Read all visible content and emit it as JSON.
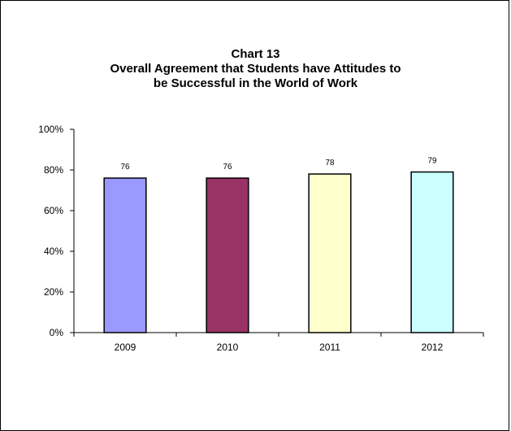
{
  "chart_data": {
    "type": "bar",
    "title_lines": [
      "Chart 13",
      "Overall Agreement that Students have Attitudes to",
      "be Successful in the World of Work"
    ],
    "xlabel": "",
    "ylabel": "",
    "categories": [
      "2009",
      "2010",
      "2011",
      "2012"
    ],
    "values": [
      76,
      76,
      78,
      79
    ],
    "data_labels": [
      "76",
      "76",
      "78",
      "79"
    ],
    "ylim": [
      0,
      100
    ],
    "yticks": [
      0,
      20,
      40,
      60,
      80,
      100
    ],
    "ytick_labels": [
      "0%",
      "20%",
      "40%",
      "60%",
      "80%",
      "100%"
    ],
    "bar_colors": [
      "#9999ff",
      "#993366",
      "#ffffcc",
      "#ccffff"
    ],
    "grid": false,
    "legend": "none"
  }
}
